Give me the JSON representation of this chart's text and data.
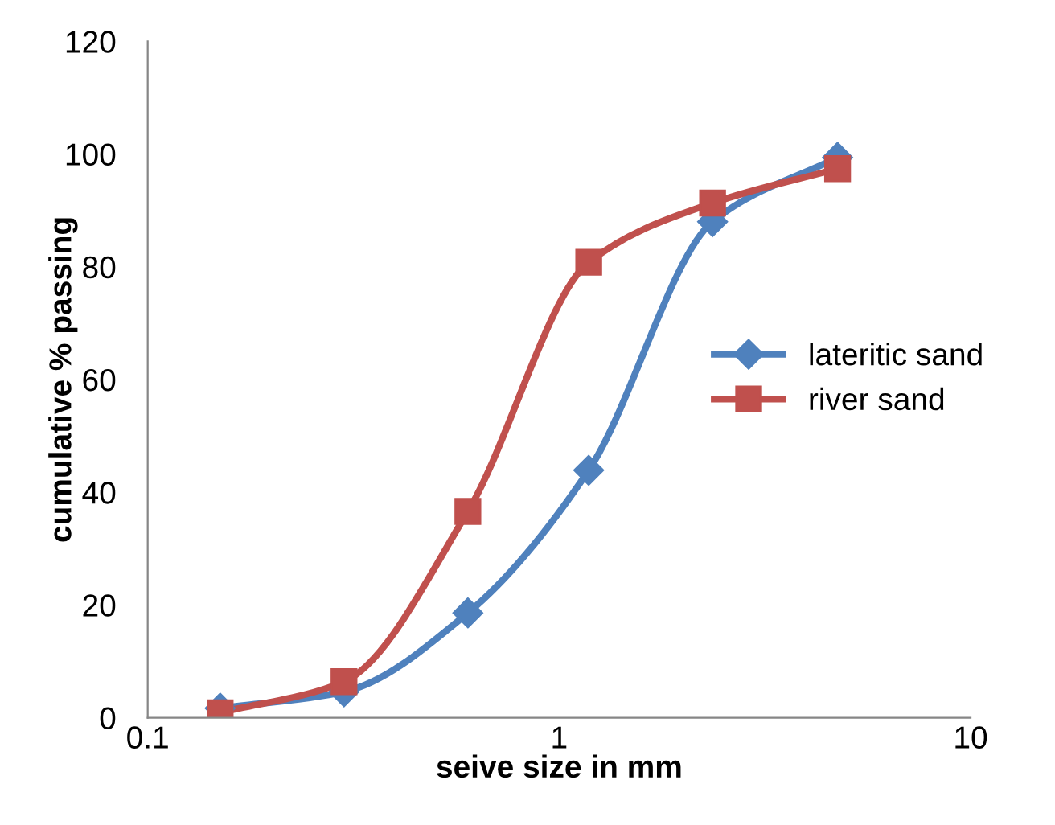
{
  "chart_data": {
    "type": "line",
    "xlabel": "seive size in mm",
    "ylabel": "cumulative % passing",
    "x": [
      0.15,
      0.3,
      0.6,
      1.18,
      2.36,
      4.75
    ],
    "series": [
      {
        "name": "lateritic sand",
        "color": "#4f81bd",
        "marker": "diamond",
        "values": [
          1.7,
          4.6,
          18.6,
          43.9,
          88,
          99.4
        ]
      },
      {
        "name": "river sand",
        "color": "#c0504d",
        "marker": "square",
        "values": [
          0.9,
          6.4,
          36.6,
          80.8,
          91.3,
          97.4
        ]
      }
    ],
    "log": "x",
    "xlim": [
      0.1,
      10
    ],
    "xticks": [
      0.1,
      1,
      10
    ],
    "ylim": [
      0,
      120
    ],
    "yticks": [
      0,
      20,
      40,
      60,
      80,
      100,
      120
    ],
    "grid": false,
    "legend": "right",
    "line_style": "solid"
  }
}
